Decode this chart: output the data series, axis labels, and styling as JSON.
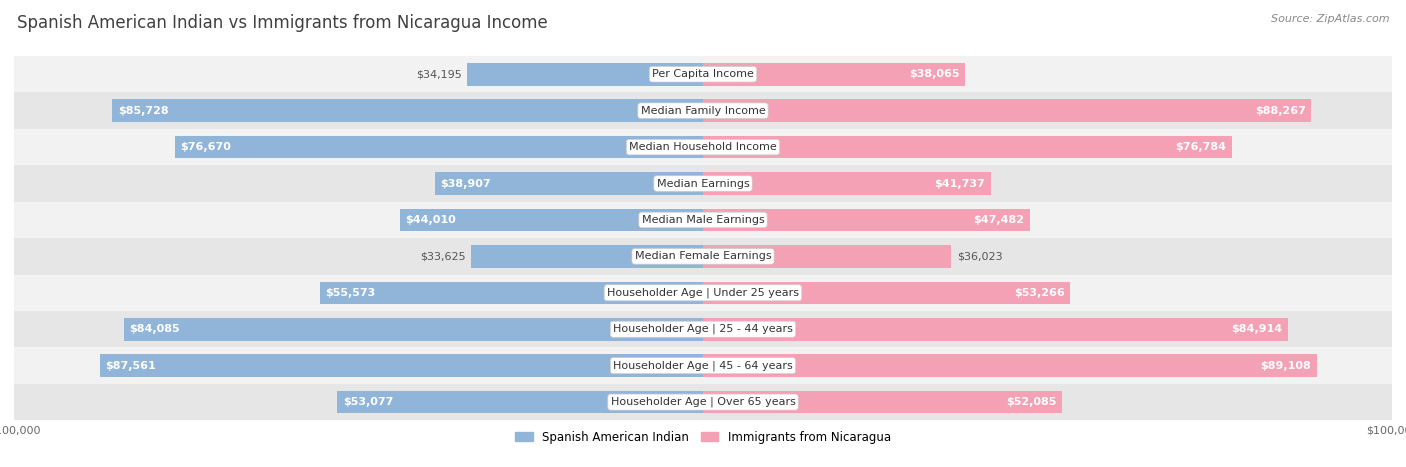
{
  "title": "Spanish American Indian vs Immigrants from Nicaragua Income",
  "source": "Source: ZipAtlas.com",
  "categories": [
    "Per Capita Income",
    "Median Family Income",
    "Median Household Income",
    "Median Earnings",
    "Median Male Earnings",
    "Median Female Earnings",
    "Householder Age | Under 25 years",
    "Householder Age | 25 - 44 years",
    "Householder Age | 45 - 64 years",
    "Householder Age | Over 65 years"
  ],
  "left_values": [
    34195,
    85728,
    76670,
    38907,
    44010,
    33625,
    55573,
    84085,
    87561,
    53077
  ],
  "right_values": [
    38065,
    88267,
    76784,
    41737,
    47482,
    36023,
    53266,
    84914,
    89108,
    52085
  ],
  "left_labels": [
    "$34,195",
    "$85,728",
    "$76,670",
    "$38,907",
    "$44,010",
    "$33,625",
    "$55,573",
    "$84,085",
    "$87,561",
    "$53,077"
  ],
  "right_labels": [
    "$38,065",
    "$88,267",
    "$76,784",
    "$41,737",
    "$47,482",
    "$36,023",
    "$53,266",
    "$84,914",
    "$89,108",
    "$52,085"
  ],
  "max_value": 100000,
  "left_color": "#91b4d9",
  "right_color": "#f4a0b5",
  "left_legend": "Spanish American Indian",
  "right_legend": "Immigrants from Nicaragua",
  "bg_color": "#ffffff",
  "row_bg_light": "#f2f2f2",
  "row_bg_dark": "#e6e6e6",
  "title_color": "#404040",
  "source_color": "#888888",
  "label_fontsize": 8.0,
  "title_fontsize": 12,
  "source_fontsize": 8,
  "axis_label_fontsize": 8,
  "inside_label_color": "#ffffff",
  "outside_label_color": "#555555",
  "inside_threshold": 0.38
}
